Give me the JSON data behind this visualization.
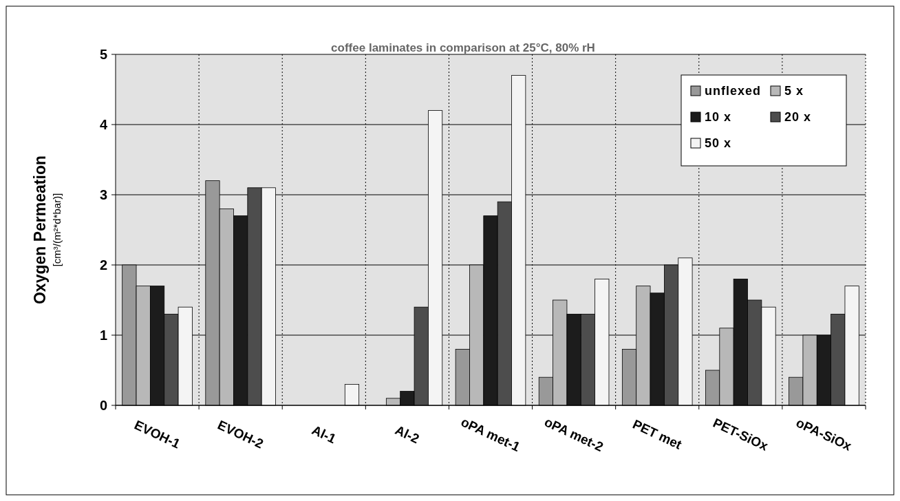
{
  "chart_data": {
    "type": "bar",
    "title": "coffee laminates in comparison at 25°C, 80% rH",
    "ylabel": "Oxygen Permeation\n[cm³/(m²*d*bar)]",
    "categories": [
      "EVOH-1",
      "EVOH-2",
      "Al-1",
      "Al-2",
      "oPA met-1",
      "oPA met-2",
      "PET met",
      "PET-SiOx",
      "oPA-SiOx"
    ],
    "series": [
      {
        "name": "unflexed",
        "color": "#999999",
        "values": [
          2.0,
          3.2,
          0,
          0,
          0.8,
          0.4,
          0.8,
          0.5,
          0.4
        ]
      },
      {
        "name": "5 x",
        "color": "#b8b8b8",
        "values": [
          1.7,
          2.8,
          0,
          0.1,
          2.0,
          1.5,
          1.7,
          1.1,
          1.0
        ]
      },
      {
        "name": "10 x",
        "color": "#1c1c1c",
        "values": [
          1.7,
          2.7,
          0,
          0.2,
          2.7,
          1.3,
          1.6,
          1.8,
          1.0
        ]
      },
      {
        "name": "20 x",
        "color": "#4d4d4d",
        "values": [
          1.3,
          3.1,
          0,
          1.4,
          2.9,
          1.3,
          2.0,
          1.5,
          1.3
        ]
      },
      {
        "name": "50 x",
        "color": "#f4f4f4",
        "values": [
          1.4,
          3.1,
          0.3,
          4.2,
          4.7,
          1.8,
          2.1,
          1.4,
          1.7
        ]
      }
    ],
    "ylim": [
      0,
      5
    ],
    "yticks": [
      0,
      1,
      2,
      3,
      4,
      5
    ],
    "grid": true,
    "legend": "top right"
  }
}
